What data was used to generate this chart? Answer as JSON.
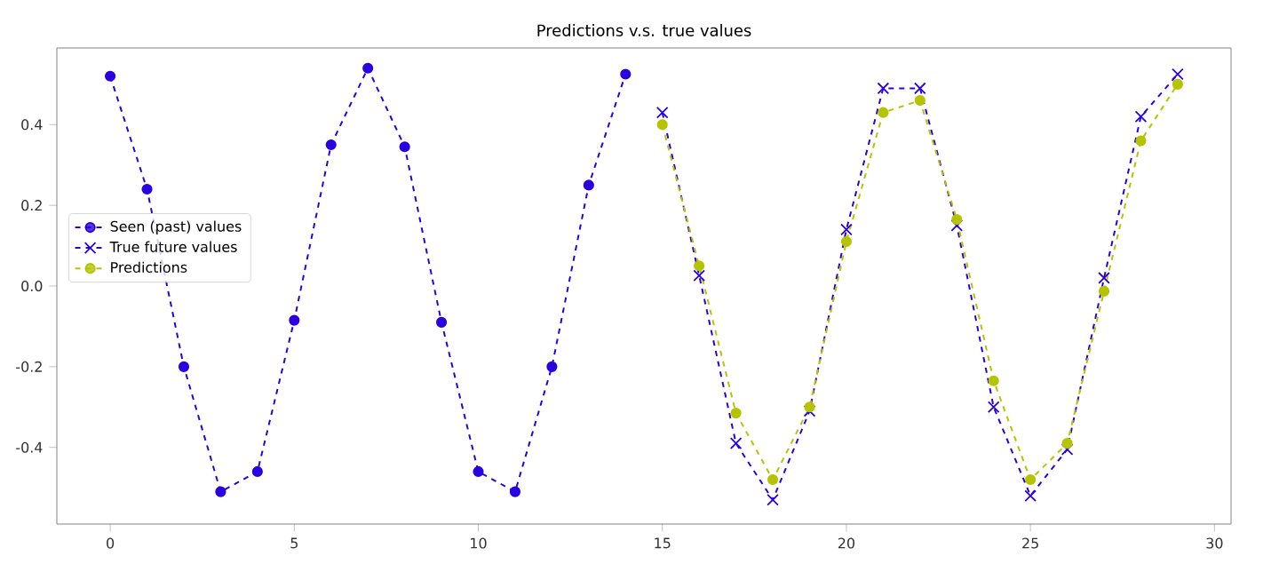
{
  "chart_data": {
    "type": "line",
    "title": "Predictions v.s. true values",
    "xlim": [
      -1.45,
      30.45
    ],
    "ylim": [
      -0.59,
      0.59
    ],
    "xticks": [
      0,
      5,
      10,
      15,
      20,
      25,
      30
    ],
    "yticks": [
      -0.4,
      -0.2,
      {
        "value": 0,
        "label": "0.0"
      },
      0.2,
      0.4
    ],
    "legend": "left",
    "grid": false,
    "line_style": "dashed",
    "series": [
      {
        "name": "Seen (past) values",
        "color": "#2a00e0",
        "marker": "circle",
        "x": [
          0,
          1,
          2,
          3,
          4,
          5,
          6,
          7,
          8,
          9,
          10,
          11,
          12,
          13,
          14
        ],
        "values": [
          0.52,
          0.24,
          -0.2,
          -0.51,
          -0.46,
          -0.085,
          0.35,
          0.54,
          0.345,
          -0.09,
          -0.46,
          -0.51,
          -0.2,
          0.25,
          0.525
        ]
      },
      {
        "name": "True future values",
        "color": "#2a00e0",
        "marker": "cross",
        "x": [
          15,
          16,
          17,
          18,
          19,
          20,
          21,
          22,
          23,
          24,
          25,
          26,
          27,
          28,
          29
        ],
        "values": [
          0.43,
          0.026,
          -0.39,
          -0.53,
          -0.31,
          0.14,
          0.49,
          0.49,
          0.15,
          -0.3,
          -0.52,
          -0.405,
          0.02,
          0.42,
          0.525
        ]
      },
      {
        "name": "Predictions",
        "color": "#b5c400",
        "marker": "circle",
        "x": [
          15,
          16,
          17,
          18,
          19,
          20,
          21,
          22,
          23,
          24,
          25,
          26,
          27,
          28,
          29
        ],
        "values": [
          0.4,
          0.05,
          -0.315,
          -0.48,
          -0.3,
          0.11,
          0.43,
          0.46,
          0.165,
          -0.235,
          -0.48,
          -0.39,
          -0.013,
          0.36,
          0.5
        ]
      }
    ]
  }
}
